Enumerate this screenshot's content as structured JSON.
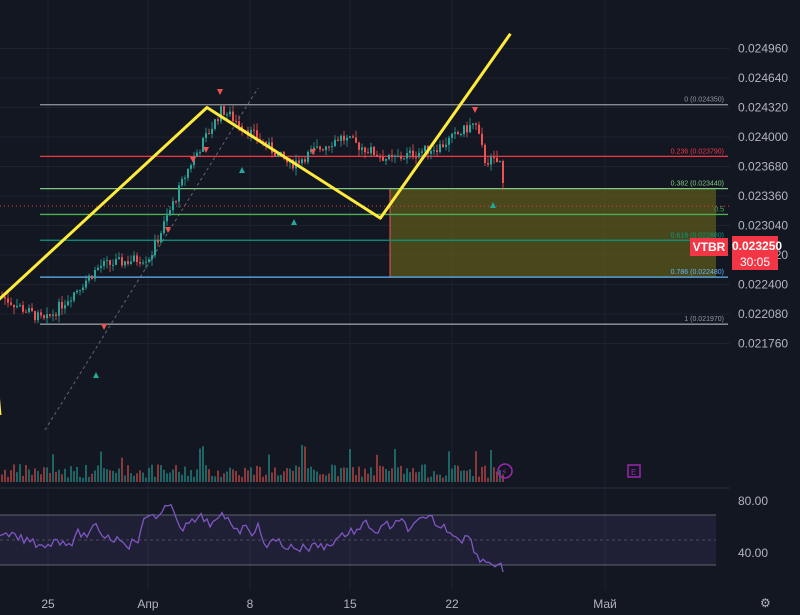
{
  "chart_data": {
    "type": "candlestick",
    "symbol": "VTBR",
    "last_price": "0.023250",
    "countdown": "30:05",
    "y_axis_ticks": [
      "0.024960",
      "0.024640",
      "0.024320",
      "0.024000",
      "0.023680",
      "0.023360",
      "0.023040",
      "0.022720",
      "0.022400",
      "0.022080",
      "0.021760"
    ],
    "x_axis_ticks": [
      "25",
      "Апр",
      "8",
      "15",
      "22",
      "Май"
    ],
    "fib_levels": [
      {
        "label": "0 (0.024350)",
        "value": 0.02435,
        "color": "#9598a1"
      },
      {
        "label": "0.236 (0.023790)",
        "value": 0.02379,
        "color": "#f23645"
      },
      {
        "label": "0.382 (0.023440)",
        "value": 0.02344,
        "color": "#81c784"
      },
      {
        "label": "0.5",
        "value": 0.02316,
        "color": "#4caf50"
      },
      {
        "label": "0.618 (0.022880)",
        "value": 0.02288,
        "color": "#089981"
      },
      {
        "label": "0.786 (0.022480)",
        "value": 0.02248,
        "color": "#64b5f6"
      },
      {
        "label": "1 (0.021970)",
        "value": 0.02197,
        "color": "#9598a1"
      }
    ],
    "zigzag_points": [
      {
        "date": "2024-03-21",
        "price": 0.02215
      },
      {
        "date": "2024-04-05",
        "price": 0.02432
      },
      {
        "date": "2024-04-17",
        "price": 0.02312
      },
      {
        "date": "2024-04-26",
        "price": 0.02512
      }
    ],
    "rsi": {
      "ticks": [
        "80.00",
        "40.00"
      ]
    },
    "colors": {
      "up": "#26a69a",
      "down": "#ef5350",
      "zigzag": "#ffeb3b",
      "rsi": "#7e57c2",
      "zone": "#5b5a1b"
    }
  }
}
